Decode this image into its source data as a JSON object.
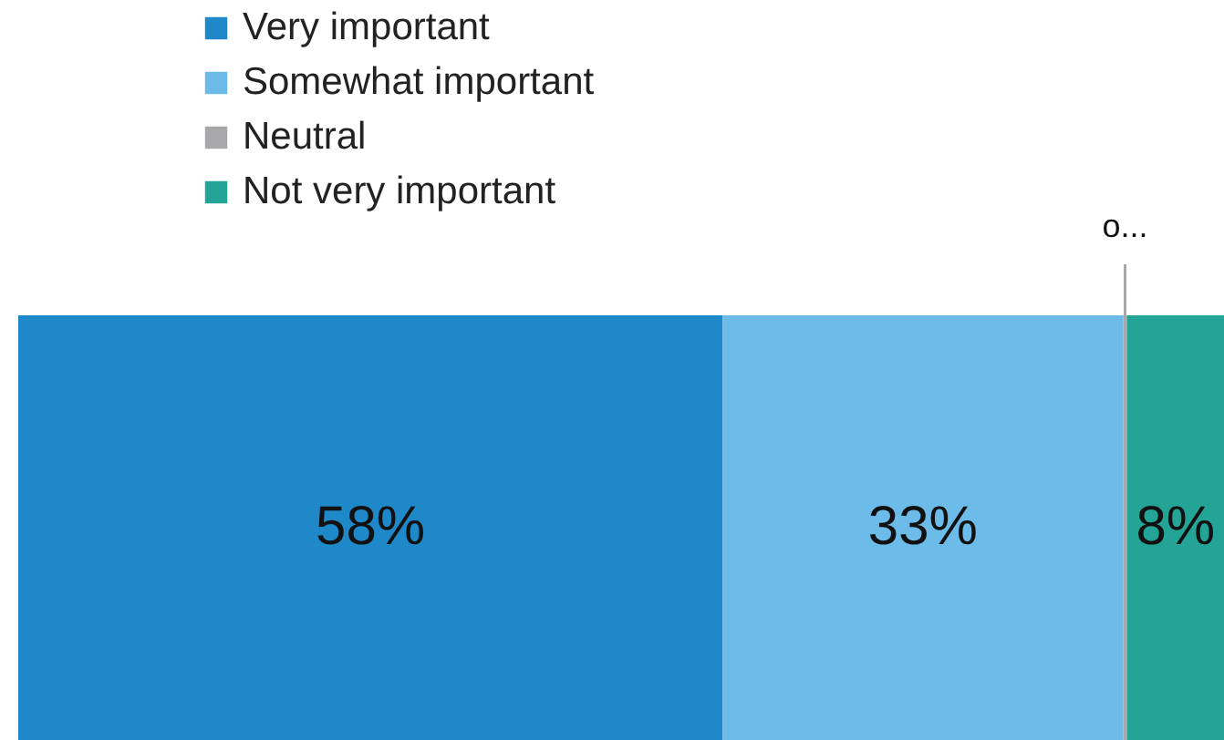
{
  "chart_data": {
    "type": "bar",
    "orientation": "horizontal",
    "stacked": true,
    "legend": "top left",
    "categories": [
      null
    ],
    "series": [
      {
        "name": "Very important",
        "color": "#1f88c8",
        "values": [
          58
        ],
        "value_labels": [
          "58%"
        ]
      },
      {
        "name": "Somewhat important",
        "color": "#6dbbe8",
        "values": [
          33
        ],
        "value_labels": [
          "33%"
        ]
      },
      {
        "name": "Neutral",
        "color": "#a8a8ab",
        "values": [
          0.3
        ],
        "value_labels": [
          "o..."
        ]
      },
      {
        "name": "Not very important",
        "color": "#23a496",
        "values": [
          8
        ],
        "value_labels": [
          "8%"
        ]
      }
    ]
  }
}
